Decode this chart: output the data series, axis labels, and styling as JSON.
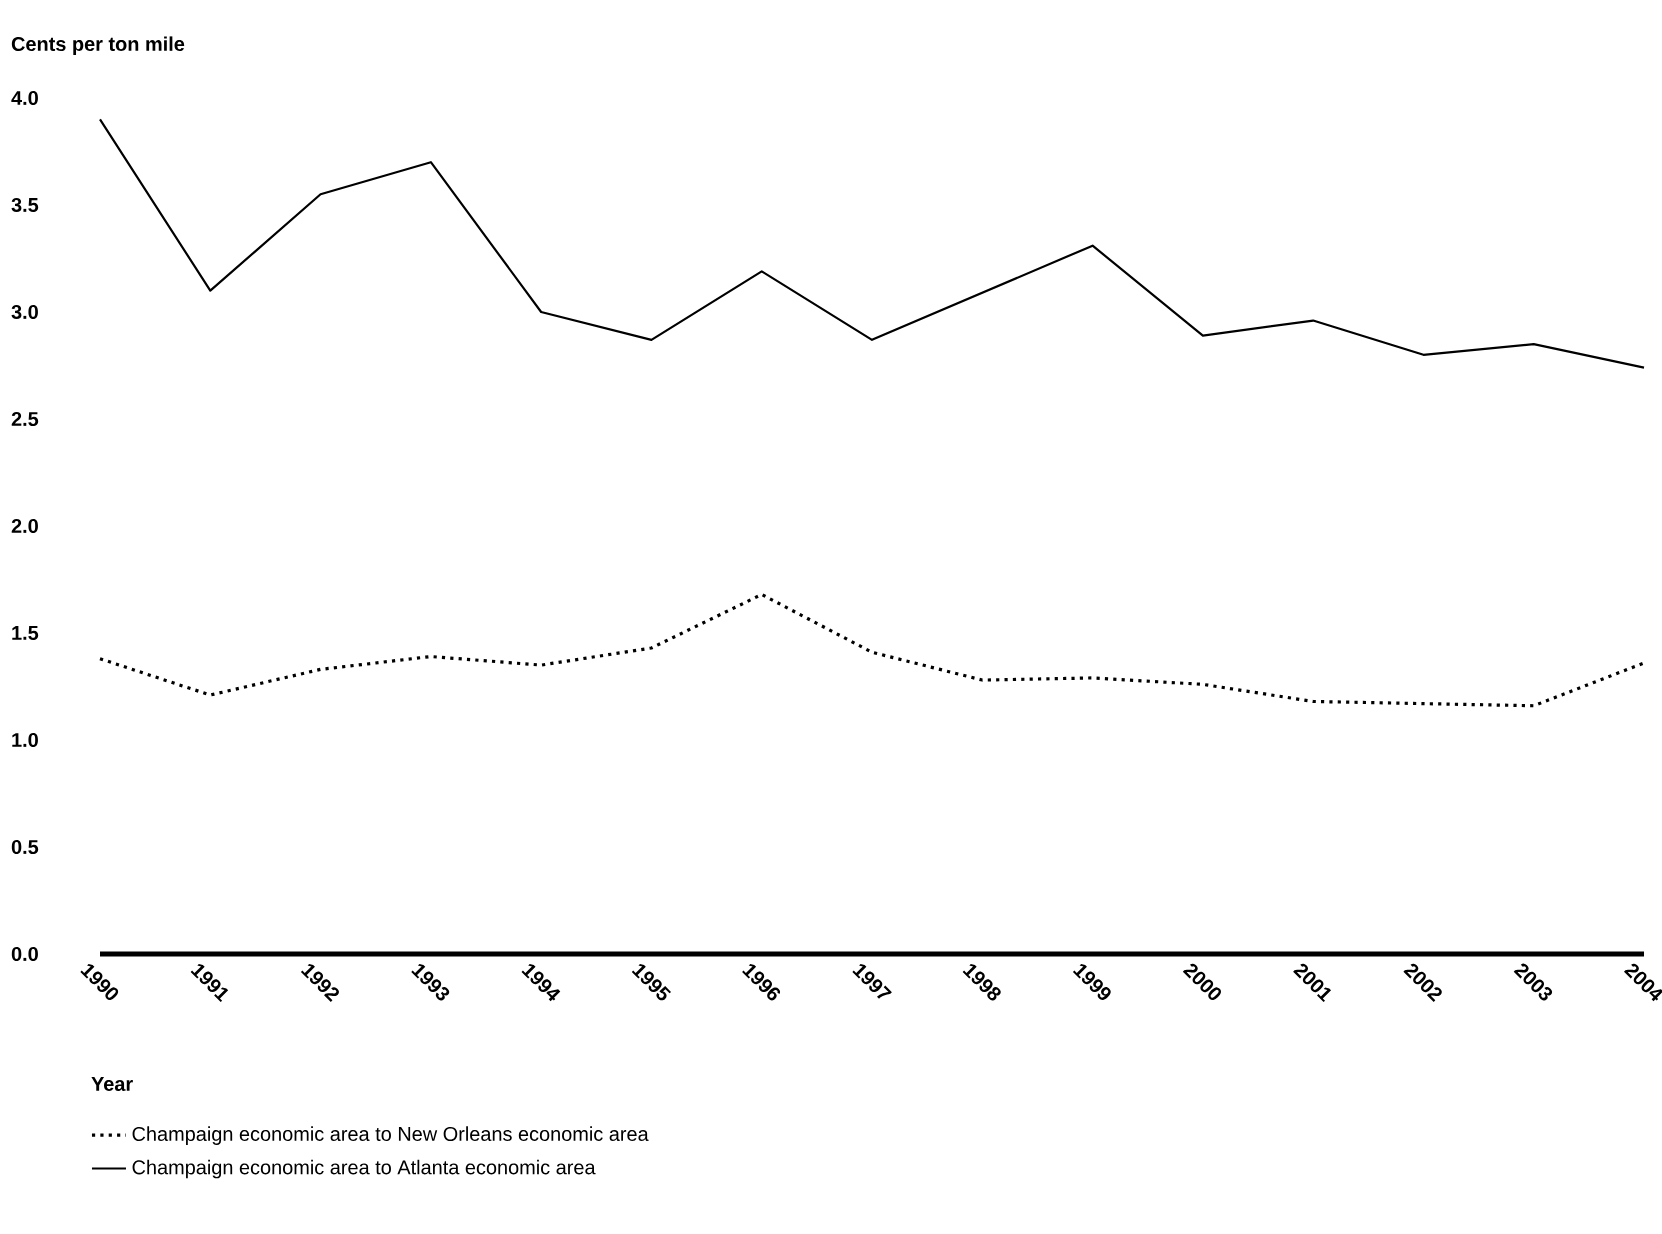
{
  "chart_data": {
    "type": "line",
    "ylabel": "Cents per ton mile",
    "xlabel": "Year",
    "x": [
      1990,
      1991,
      1992,
      1993,
      1994,
      1995,
      1996,
      1997,
      1998,
      1999,
      2000,
      2001,
      2002,
      2003,
      2004
    ],
    "series": [
      {
        "name": "Champaign economic area to New Orleans economic area",
        "color": "#000000",
        "line_style": "dotted",
        "values": [
          1.38,
          1.21,
          1.33,
          1.39,
          1.35,
          1.43,
          1.68,
          1.41,
          1.28,
          1.29,
          1.26,
          1.18,
          1.17,
          1.16,
          1.36
        ]
      },
      {
        "name": "Champaign economic area to Atlanta economic area",
        "color": "#000000",
        "line_style": "solid",
        "values": [
          3.9,
          3.1,
          3.55,
          3.7,
          3.0,
          2.87,
          3.19,
          2.87,
          3.09,
          3.31,
          2.89,
          2.96,
          2.8,
          2.85,
          2.74
        ]
      }
    ],
    "xlim": [
      1990,
      2004
    ],
    "xticks": [
      1990,
      1991,
      1992,
      1993,
      1994,
      1995,
      1996,
      1997,
      1998,
      1999,
      2000,
      2001,
      2002,
      2003,
      2004
    ],
    "ylim": [
      0,
      4.0
    ],
    "yticks": [
      {
        "value": 0,
        "label": "0.0"
      },
      0.5,
      {
        "value": 1,
        "label": "1.0"
      },
      1.5,
      {
        "value": 2,
        "label": "2.0"
      },
      2.5,
      {
        "value": 3,
        "label": "3.0"
      },
      3.5,
      {
        "value": 4,
        "label": "4.0"
      }
    ],
    "grid": false,
    "legend": "bottom",
    "marker": "none"
  }
}
